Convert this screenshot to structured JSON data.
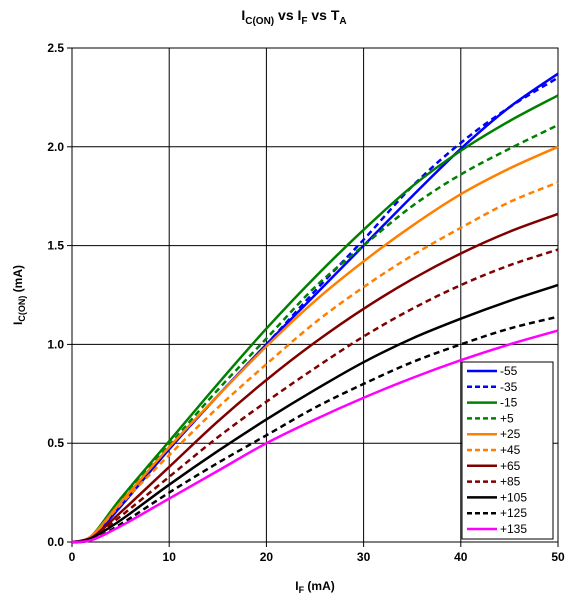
{
  "chart_data": {
    "type": "line",
    "title": {
      "main": "I",
      "sub1": "C(ON)",
      "mid1": " vs I",
      "sub2": "F",
      "mid2": " vs T",
      "sub3": "A"
    },
    "xlabel": {
      "main": "I",
      "sub": "F",
      "rest": " (mA)"
    },
    "ylabel": {
      "main": "I",
      "sub": "C(ON)",
      "rest": " (mA)"
    },
    "xlim": [
      0,
      50
    ],
    "ylim": [
      0,
      2.5
    ],
    "xticks": [
      "0",
      "10",
      "20",
      "30",
      "40",
      "50"
    ],
    "yticks": [
      "0.0",
      "0.5",
      "1.0",
      "1.5",
      "2.0",
      "2.5"
    ],
    "grid": true,
    "legend_position": "bottom-right",
    "x": [
      0,
      2,
      5,
      10,
      15,
      20,
      25,
      30,
      35,
      40,
      45,
      50
    ],
    "series": [
      {
        "name": "-55",
        "color": "#0000ff",
        "dash": false,
        "values": [
          0,
          0.02,
          0.18,
          0.47,
          0.74,
          1.0,
          1.25,
          1.5,
          1.75,
          1.99,
          2.2,
          2.37
        ]
      },
      {
        "name": "-35",
        "color": "#0000ff",
        "dash": true,
        "values": [
          0,
          0.02,
          0.18,
          0.47,
          0.74,
          1.0,
          1.27,
          1.53,
          1.8,
          2.02,
          2.2,
          2.35
        ]
      },
      {
        "name": "-15",
        "color": "#008000",
        "dash": false,
        "values": [
          0,
          0.03,
          0.22,
          0.51,
          0.8,
          1.08,
          1.34,
          1.58,
          1.8,
          1.98,
          2.13,
          2.26
        ]
      },
      {
        "name": "+5",
        "color": "#008000",
        "dash": true,
        "values": [
          0,
          0.03,
          0.21,
          0.49,
          0.77,
          1.03,
          1.29,
          1.5,
          1.7,
          1.86,
          1.99,
          2.11
        ]
      },
      {
        "name": "+25",
        "color": "#ff8000",
        "dash": false,
        "values": [
          0,
          0.03,
          0.2,
          0.48,
          0.74,
          0.99,
          1.22,
          1.42,
          1.6,
          1.76,
          1.89,
          2.0
        ]
      },
      {
        "name": "+45",
        "color": "#ff8000",
        "dash": true,
        "values": [
          0,
          0.03,
          0.19,
          0.44,
          0.68,
          0.9,
          1.11,
          1.29,
          1.45,
          1.59,
          1.72,
          1.82
        ]
      },
      {
        "name": "+65",
        "color": "#800000",
        "dash": false,
        "values": [
          0,
          0.02,
          0.15,
          0.38,
          0.61,
          0.82,
          1.01,
          1.18,
          1.33,
          1.46,
          1.57,
          1.66
        ]
      },
      {
        "name": "+85",
        "color": "#800000",
        "dash": true,
        "values": [
          0,
          0.02,
          0.13,
          0.33,
          0.53,
          0.71,
          0.88,
          1.04,
          1.18,
          1.3,
          1.4,
          1.48
        ]
      },
      {
        "name": "+105",
        "color": "#000000",
        "dash": false,
        "values": [
          0,
          0.02,
          0.11,
          0.29,
          0.46,
          0.62,
          0.77,
          0.91,
          1.03,
          1.13,
          1.22,
          1.3
        ]
      },
      {
        "name": "+125",
        "color": "#000000",
        "dash": true,
        "values": [
          0,
          0.01,
          0.09,
          0.25,
          0.4,
          0.54,
          0.68,
          0.8,
          0.91,
          1.0,
          1.08,
          1.14
        ]
      },
      {
        "name": "+135",
        "color": "#ff00ff",
        "dash": false,
        "values": [
          0,
          0.01,
          0.08,
          0.22,
          0.36,
          0.5,
          0.62,
          0.73,
          0.83,
          0.92,
          1.0,
          1.07
        ]
      }
    ]
  }
}
